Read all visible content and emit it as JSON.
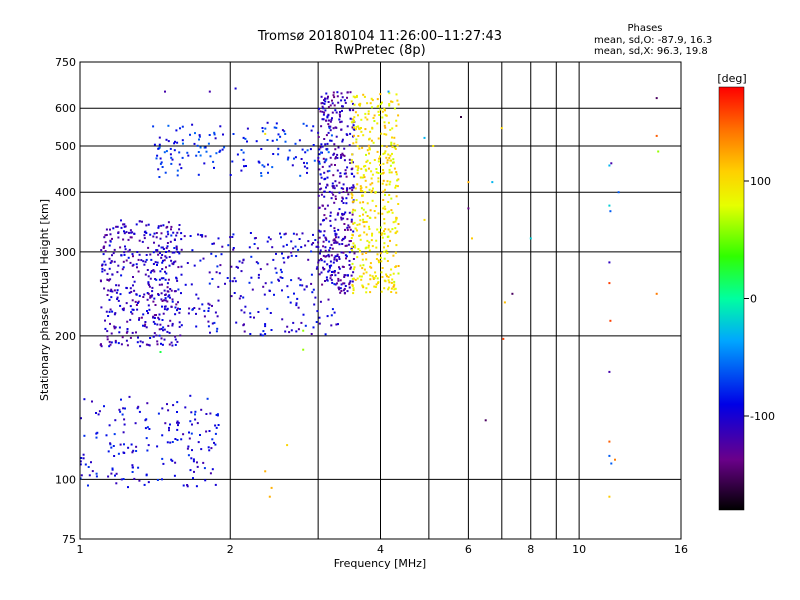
{
  "chart_data": {
    "type": "scatter",
    "title": "Tromsø 20180104 11:26:00–11:27:43",
    "subtitle": "RwPretec (8p)",
    "stats": {
      "heading": "Phases",
      "line1": "mean, sd,O: -87.9, 16.3",
      "line2": "mean, sd,X:  96.3, 19.8"
    },
    "xlabel": "Frequency [MHz]",
    "ylabel": "Stationary phase Virtual Height [km]",
    "x_scale": "log",
    "y_scale": "log",
    "xlim": [
      1,
      16
    ],
    "ylim": [
      75,
      750
    ],
    "x_ticks": [
      1,
      2,
      4,
      6,
      8,
      10,
      16
    ],
    "x_tick_labels": [
      "1",
      "2",
      "4",
      "6",
      "8",
      "10",
      "16"
    ],
    "x_grid_extra": [
      3,
      5,
      7,
      9
    ],
    "y_ticks": [
      75,
      100,
      200,
      300,
      400,
      500,
      600,
      750
    ],
    "y_tick_labels": [
      "75",
      "100",
      "200",
      "300",
      "400",
      "500",
      "600",
      "750"
    ],
    "grid": true,
    "colorbar": {
      "label": "[deg]",
      "min": -180,
      "max": 180,
      "ticks": [
        100,
        0,
        -100
      ],
      "tick_labels": [
        "100",
        "0",
        "-100"
      ]
    },
    "clusters": [
      {
        "name": "E-region blob",
        "x_range": [
          1.0,
          1.9
        ],
        "y_range": [
          96,
          150
        ],
        "phase": -95,
        "n": 180
      },
      {
        "name": "F O-trace lower",
        "x_range": [
          1.1,
          1.6
        ],
        "y_range": [
          190,
          350
        ],
        "phase": -110,
        "n": 380
      },
      {
        "name": "F O-trace ramp",
        "x_range": [
          1.35,
          3.3
        ],
        "y_range": [
          200,
          330
        ],
        "phase": -100,
        "n": 300
      },
      {
        "name": "O cusp 3.2-3.55",
        "x_range": [
          3.0,
          3.55
        ],
        "y_range": [
          245,
          650
        ],
        "phase": -115,
        "n": 380
      },
      {
        "name": "X-trace 3.5-4.4",
        "x_range": [
          3.5,
          4.35
        ],
        "y_range": [
          245,
          650
        ],
        "phase": 95,
        "n": 420
      },
      {
        "name": "upper F trace",
        "x_range": [
          1.4,
          3.2
        ],
        "y_range": [
          430,
          560
        ],
        "phase": -80,
        "n": 160
      }
    ],
    "isolated_points": [
      {
        "x": 1.48,
        "y": 650,
        "phase": -120
      },
      {
        "x": 1.82,
        "y": 650,
        "phase": -120
      },
      {
        "x": 2.05,
        "y": 660,
        "phase": -100
      },
      {
        "x": 2.35,
        "y": 530,
        "phase": 95
      },
      {
        "x": 2.55,
        "y": 540,
        "phase": -110
      },
      {
        "x": 3.1,
        "y": 620,
        "phase": -90
      },
      {
        "x": 4.15,
        "y": 650,
        "phase": -40
      },
      {
        "x": 4.3,
        "y": 565,
        "phase": 80
      },
      {
        "x": 4.9,
        "y": 520,
        "phase": -30
      },
      {
        "x": 5.1,
        "y": 500,
        "phase": 95
      },
      {
        "x": 5.8,
        "y": 575,
        "phase": -160
      },
      {
        "x": 7.0,
        "y": 545,
        "phase": 105
      },
      {
        "x": 6.0,
        "y": 420,
        "phase": 120
      },
      {
        "x": 6.7,
        "y": 420,
        "phase": -30
      },
      {
        "x": 4.9,
        "y": 350,
        "phase": 100
      },
      {
        "x": 6.0,
        "y": 370,
        "phase": -140
      },
      {
        "x": 6.1,
        "y": 320,
        "phase": 110
      },
      {
        "x": 8.0,
        "y": 320,
        "phase": -20
      },
      {
        "x": 7.35,
        "y": 245,
        "phase": -150
      },
      {
        "x": 7.1,
        "y": 235,
        "phase": 115
      },
      {
        "x": 7.05,
        "y": 197,
        "phase": 160
      },
      {
        "x": 6.5,
        "y": 133,
        "phase": -150
      },
      {
        "x": 2.8,
        "y": 205,
        "phase": 60
      },
      {
        "x": 2.8,
        "y": 187,
        "phase": 60
      },
      {
        "x": 1.45,
        "y": 185,
        "phase": 20
      },
      {
        "x": 2.6,
        "y": 118,
        "phase": 105
      },
      {
        "x": 2.35,
        "y": 104,
        "phase": 120
      },
      {
        "x": 2.42,
        "y": 96,
        "phase": 120
      },
      {
        "x": 2.4,
        "y": 92,
        "phase": 120
      },
      {
        "x": 11.5,
        "y": 455,
        "phase": -30
      },
      {
        "x": 11.6,
        "y": 460,
        "phase": -120
      },
      {
        "x": 11.5,
        "y": 375,
        "phase": -20
      },
      {
        "x": 11.55,
        "y": 365,
        "phase": -60
      },
      {
        "x": 12.0,
        "y": 400,
        "phase": -60
      },
      {
        "x": 11.5,
        "y": 285,
        "phase": -110
      },
      {
        "x": 11.5,
        "y": 258,
        "phase": 160
      },
      {
        "x": 11.55,
        "y": 215,
        "phase": 160
      },
      {
        "x": 11.5,
        "y": 168,
        "phase": -120
      },
      {
        "x": 11.5,
        "y": 120,
        "phase": 150
      },
      {
        "x": 11.5,
        "y": 112,
        "phase": -60
      },
      {
        "x": 11.6,
        "y": 108,
        "phase": -60
      },
      {
        "x": 11.8,
        "y": 110,
        "phase": 140
      },
      {
        "x": 11.5,
        "y": 92,
        "phase": 110
      },
      {
        "x": 14.3,
        "y": 630,
        "phase": -150
      },
      {
        "x": 14.3,
        "y": 525,
        "phase": 150
      },
      {
        "x": 14.4,
        "y": 487,
        "phase": 60
      },
      {
        "x": 14.3,
        "y": 245,
        "phase": 140
      }
    ]
  }
}
